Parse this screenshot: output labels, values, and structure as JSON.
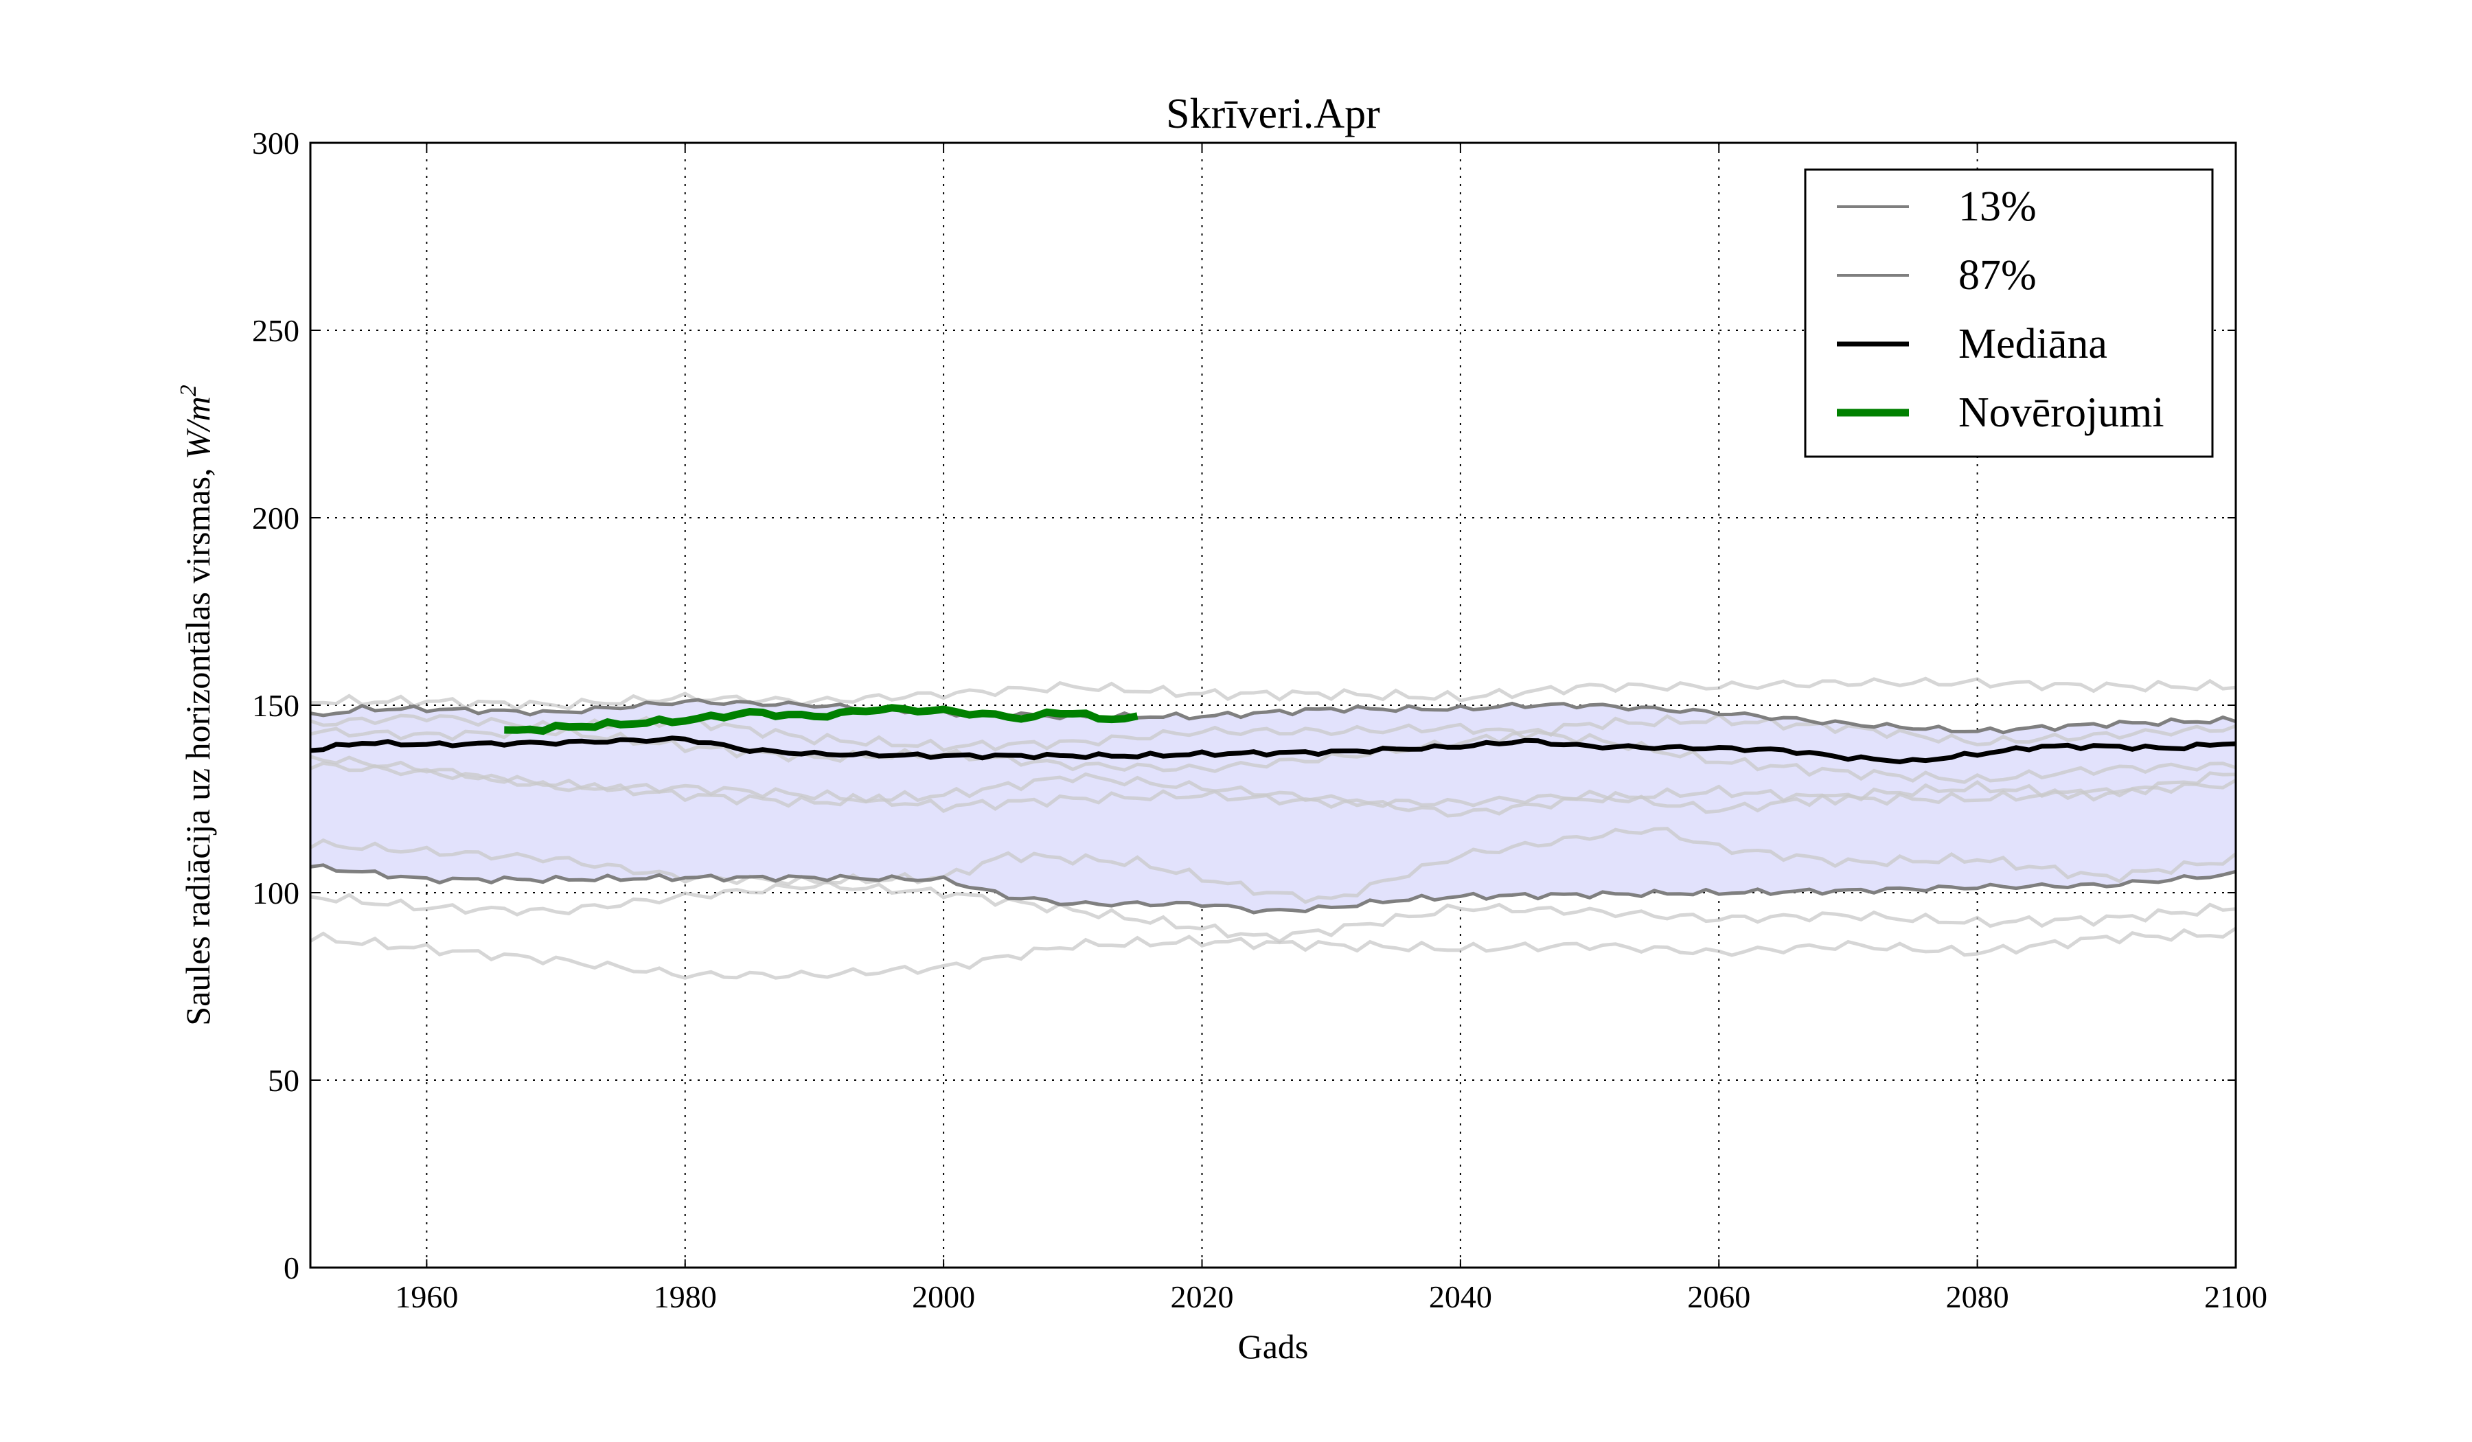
{
  "chart_data": {
    "type": "line",
    "title": "Skrīveri.Apr",
    "xlabel": "Gads",
    "ylabel": "Saules radiācija uz horizontālas virsmas, ",
    "ylabel_unit": "W/m",
    "ylabel_unit_exp": "2",
    "xlim": [
      1951,
      2100
    ],
    "ylim": [
      0,
      300
    ],
    "xticks": [
      1960,
      1980,
      2000,
      2020,
      2040,
      2060,
      2080,
      2100
    ],
    "yticks": [
      0,
      50,
      100,
      150,
      200,
      250,
      300
    ],
    "grid": true,
    "legend_position": "top-right",
    "colors": {
      "band": "#e2e2fc",
      "ensemble": "#c8c8c8",
      "percentile": "#7f7f7f",
      "median": "#000000",
      "observed": "#008000"
    },
    "legend": [
      {
        "label": "13%",
        "series": "p13"
      },
      {
        "label": "87%",
        "series": "p87"
      },
      {
        "label": "Mediāna",
        "series": "median"
      },
      {
        "label": "Novērojumi",
        "series": "observed"
      }
    ],
    "series": [
      {
        "name": "13%",
        "key": "p13",
        "x": [
          1951,
          1955,
          1960,
          1970,
          1980,
          1990,
          2000,
          2005,
          2010,
          2020,
          2025,
          2030,
          2035,
          2040,
          2050,
          2060,
          2070,
          2080,
          2090,
          2100
        ],
        "values": [
          107,
          105.5,
          103.5,
          103.5,
          104,
          104,
          103.5,
          99,
          97,
          97,
          95,
          96,
          98,
          99,
          99.5,
          100,
          100.5,
          101.5,
          102,
          105
        ]
      },
      {
        "name": "87%",
        "key": "p87",
        "x": [
          1951,
          1955,
          1960,
          1970,
          1980,
          1990,
          2000,
          2010,
          2020,
          2030,
          2040,
          2045,
          2050,
          2055,
          2060,
          2070,
          2080,
          2090,
          2100
        ],
        "values": [
          147,
          149,
          149,
          148,
          151,
          150,
          148,
          147,
          147,
          149,
          149,
          150,
          150,
          149,
          148,
          145,
          143,
          145,
          146
        ]
      },
      {
        "name": "Mediāna",
        "key": "median",
        "x": [
          1951,
          1955,
          1960,
          1970,
          1980,
          1985,
          1990,
          2000,
          2010,
          2015,
          2020,
          2030,
          2040,
          2045,
          2050,
          2060,
          2065,
          2070,
          2075,
          2080,
          2085,
          2090,
          2095,
          2100
        ],
        "values": [
          138,
          140,
          139.5,
          140,
          141,
          138,
          137,
          136.5,
          136.5,
          136.5,
          137,
          137.5,
          139,
          140.5,
          139,
          138.5,
          138,
          136,
          135,
          137,
          139,
          139,
          138.5,
          140
        ]
      },
      {
        "name": "Novērojumi",
        "key": "observed",
        "x": [
          1966,
          1968,
          1970,
          1975,
          1980,
          1985,
          1990,
          1995,
          2000,
          2005,
          2007,
          2008,
          2010,
          2012,
          2015
        ],
        "values": [
          143,
          143.5,
          144,
          145,
          146,
          148,
          147,
          149,
          148.5,
          147,
          146.5,
          148,
          148,
          146.5,
          146.5
        ]
      }
    ],
    "ensemble": [
      {
        "x": [
          1951,
          1960,
          1970,
          1980,
          1990,
          2000,
          2010,
          2020,
          2030,
          2040,
          2050,
          2060,
          2070,
          2080,
          2090,
          2100
        ],
        "values": [
          151,
          151,
          150,
          152,
          151,
          153,
          155,
          153,
          153,
          152,
          155,
          155,
          156,
          156,
          155,
          155
        ]
      },
      {
        "x": [
          1951,
          1960,
          1970,
          1980,
          1990,
          2000,
          2010,
          2020,
          2030,
          2040,
          2050,
          2060,
          2070,
          2080,
          2090,
          2100
        ],
        "values": [
          88,
          85,
          82,
          78,
          78,
          80,
          86,
          87,
          86,
          85,
          86,
          84,
          86,
          84,
          88,
          89
        ]
      },
      {
        "x": [
          1951,
          1960,
          1970,
          1980,
          1990,
          2000,
          2015,
          2025,
          2030,
          2040,
          2050,
          2060,
          2070,
          2080,
          2090,
          2100
        ],
        "values": [
          99,
          96,
          95,
          99,
          102,
          100,
          93,
          88,
          90,
          96,
          95,
          93,
          94,
          92,
          93,
          96
        ]
      },
      {
        "x": [
          1951,
          1960,
          1970,
          1980,
          1990,
          2000,
          2005,
          2015,
          2025,
          2030,
          2040,
          2050,
          2055,
          2060,
          2070,
          2080,
          2090,
          2100
        ],
        "values": [
          113,
          111,
          109,
          104,
          103,
          104,
          110,
          108,
          100,
          98,
          110,
          115,
          117,
          112,
          108,
          109,
          104,
          109
        ]
      },
      {
        "x": [
          1951,
          1960,
          1970,
          1980,
          1990,
          2000,
          2010,
          2020,
          2030,
          2040,
          2050,
          2060,
          2070,
          2080,
          2090,
          2100
        ],
        "values": [
          136,
          133,
          128,
          128,
          126,
          123,
          125,
          126,
          124,
          124,
          126,
          122,
          126,
          128,
          126,
          132
        ]
      },
      {
        "x": [
          1951,
          1960,
          1970,
          1980,
          1990,
          2000,
          2010,
          2020,
          2030,
          2040,
          2050,
          2060,
          2070,
          2080,
          2090,
          2100
        ],
        "values": [
          134,
          132,
          129,
          126,
          124,
          126,
          131,
          128,
          125,
          121,
          125,
          127,
          125,
          125,
          127,
          129
        ]
      },
      {
        "x": [
          1951,
          1960,
          1970,
          1980,
          1990,
          2000,
          2010,
          2020,
          2030,
          2040,
          2050,
          2060,
          2070,
          2080,
          2090,
          2100
        ],
        "values": [
          145,
          147,
          144,
          146,
          141,
          139,
          140,
          143,
          143,
          144,
          141,
          135,
          132,
          130,
          133,
          134
        ]
      },
      {
        "x": [
          1951,
          1960,
          1970,
          1980,
          1990,
          2000,
          2010,
          2020,
          2030,
          2040,
          2050,
          2060,
          2070,
          2080,
          2090,
          2100
        ],
        "values": [
          143,
          142,
          143,
          139,
          136,
          137,
          134,
          133,
          136,
          140,
          145,
          146,
          144,
          140,
          142,
          144
        ]
      }
    ]
  }
}
